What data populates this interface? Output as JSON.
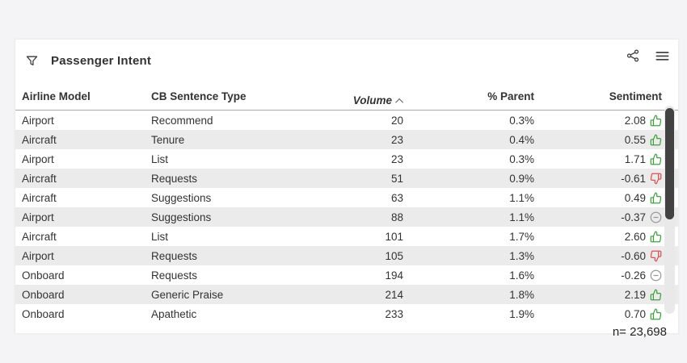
{
  "widget": {
    "title": "Passenger Intent",
    "footer": "n= 23,698"
  },
  "icons": {
    "filter": "filter-funnel",
    "share": "share-network",
    "menu": "hamburger-menu",
    "sort": "ascending-caret"
  },
  "table": {
    "columns": [
      "Airline Model",
      "CB Sentence Type",
      "Volume",
      "% Parent",
      "Sentiment"
    ],
    "sort": {
      "column": "Volume",
      "direction": "ascending"
    },
    "rows": [
      {
        "model": "Airport",
        "type": "Recommend",
        "volume": "20",
        "pct": "0.3%",
        "sentiment": "2.08",
        "icon": "thumbs-up"
      },
      {
        "model": "Aircraft",
        "type": "Tenure",
        "volume": "23",
        "pct": "0.4%",
        "sentiment": "0.55",
        "icon": "thumbs-up"
      },
      {
        "model": "Airport",
        "type": "List",
        "volume": "23",
        "pct": "0.3%",
        "sentiment": "1.71",
        "icon": "thumbs-up"
      },
      {
        "model": "Aircraft",
        "type": "Requests",
        "volume": "51",
        "pct": "0.9%",
        "sentiment": "-0.61",
        "icon": "thumbs-down"
      },
      {
        "model": "Aircraft",
        "type": "Suggestions",
        "volume": "63",
        "pct": "1.1%",
        "sentiment": "0.49",
        "icon": "thumbs-up"
      },
      {
        "model": "Airport",
        "type": "Suggestions",
        "volume": "88",
        "pct": "1.1%",
        "sentiment": "-0.37",
        "icon": "neutral"
      },
      {
        "model": "Aircraft",
        "type": "List",
        "volume": "101",
        "pct": "1.7%",
        "sentiment": "2.60",
        "icon": "thumbs-up"
      },
      {
        "model": "Airport",
        "type": "Requests",
        "volume": "105",
        "pct": "1.3%",
        "sentiment": "-0.60",
        "icon": "thumbs-down"
      },
      {
        "model": "Onboard",
        "type": "Requests",
        "volume": "194",
        "pct": "1.6%",
        "sentiment": "-0.26",
        "icon": "neutral"
      },
      {
        "model": "Onboard",
        "type": "Generic Praise",
        "volume": "214",
        "pct": "1.8%",
        "sentiment": "2.19",
        "icon": "thumbs-up"
      },
      {
        "model": "Onboard",
        "type": "Apathetic",
        "volume": "233",
        "pct": "1.9%",
        "sentiment": "0.70",
        "icon": "thumbs-up"
      }
    ]
  },
  "colors": {
    "positive": "#3fa33a",
    "negative": "#e14f4f",
    "neutral": "#9a9a9a",
    "icon_gray": "#444444"
  }
}
